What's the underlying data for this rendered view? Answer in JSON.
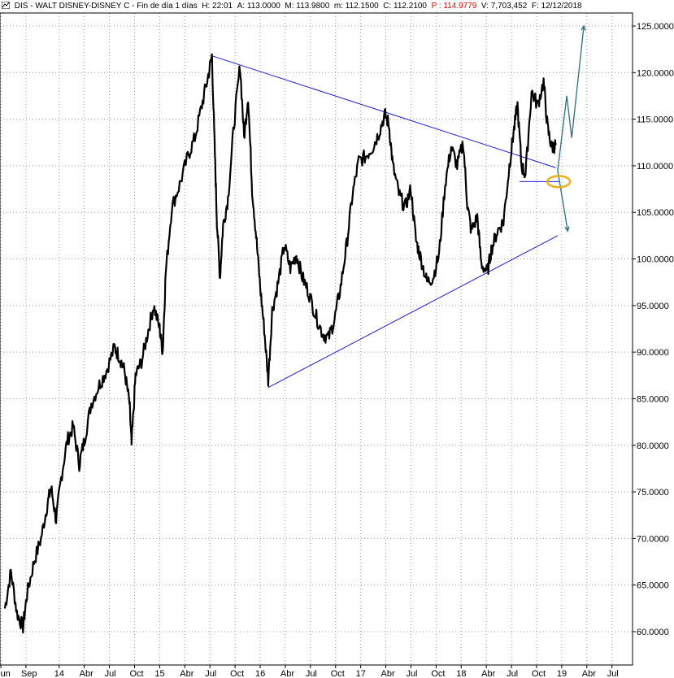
{
  "header": {
    "symbol": "DIS",
    "name": "WALT DISNEY-DISNEY C",
    "period": "Fin de día 1 días",
    "h_label": "H:",
    "h_value": "22:01",
    "a_label": "A:",
    "a_value": "113.0000",
    "m_label": "M:",
    "m_value": "113.9800",
    "mm_label": "m:",
    "mm_value": "112.1500",
    "c_label": "C:",
    "c_value": "112.2100",
    "p_label": "P :",
    "p_value": "114.9779",
    "v_label": "V:",
    "v_value": "7,703,452",
    "f_label": "F:",
    "f_value": "12/12/2018"
  },
  "colors": {
    "price": "#000000",
    "trendline": "#1a1acc",
    "projection": "#2e6d7a",
    "highlight": "#e8b020",
    "grid": "#9a9a9a"
  },
  "chart_data": {
    "type": "line",
    "title": "",
    "xlabel": "",
    "ylabel": "",
    "grid": true,
    "y_axis_position": "right",
    "ylim": [
      59,
      126.5
    ],
    "xlim": [
      2013.46,
      2019.64
    ],
    "yticks": [
      "60.0000",
      "65.0000",
      "70.0000",
      "75.0000",
      "80.0000",
      "85.0000",
      "90.0000",
      "95.0000",
      "100.0000",
      "105.0000",
      "110.0000",
      "115.0000",
      "120.0000",
      "125.0000"
    ],
    "ytick_values": [
      60,
      65,
      70,
      75,
      80,
      85,
      90,
      95,
      100,
      105,
      110,
      115,
      120,
      125
    ],
    "xticks": [
      {
        "label": "Jun",
        "x": 2013.42
      },
      {
        "label": "Sep",
        "x": 2013.67
      },
      {
        "label": "14",
        "x": 2014.0
      },
      {
        "label": "Abr",
        "x": 2014.25
      },
      {
        "label": "Jul",
        "x": 2014.5
      },
      {
        "label": "Oct",
        "x": 2014.75
      },
      {
        "label": "15",
        "x": 2015.0
      },
      {
        "label": "Abr",
        "x": 2015.25
      },
      {
        "label": "Jul",
        "x": 2015.5
      },
      {
        "label": "Oct",
        "x": 2015.75
      },
      {
        "label": "16",
        "x": 2016.0
      },
      {
        "label": "Abr",
        "x": 2016.25
      },
      {
        "label": "Jul",
        "x": 2016.5
      },
      {
        "label": "Oct",
        "x": 2016.75
      },
      {
        "label": "17",
        "x": 2017.0
      },
      {
        "label": "Abr",
        "x": 2017.25
      },
      {
        "label": "Jul",
        "x": 2017.5
      },
      {
        "label": "Oct",
        "x": 2017.75
      },
      {
        "label": "18",
        "x": 2018.0
      },
      {
        "label": "Abr",
        "x": 2018.25
      },
      {
        "label": "Jul",
        "x": 2018.5
      },
      {
        "label": "Oct",
        "x": 2018.75
      },
      {
        "label": "19",
        "x": 2019.0
      },
      {
        "label": "Abr",
        "x": 2019.25
      },
      {
        "label": "Jul",
        "x": 2019.5
      }
    ],
    "series": [
      {
        "points": [
          [
            2013.46,
            62.5
          ],
          [
            2013.52,
            66.5
          ],
          [
            2013.58,
            62.0
          ],
          [
            2013.64,
            60.5
          ],
          [
            2013.68,
            64.0
          ],
          [
            2013.75,
            67.5
          ],
          [
            2013.82,
            70.0
          ],
          [
            2013.88,
            73.5
          ],
          [
            2013.92,
            75.5
          ],
          [
            2013.97,
            72.0
          ],
          [
            2014.02,
            76.5
          ],
          [
            2014.08,
            80.5
          ],
          [
            2014.14,
            82.0
          ],
          [
            2014.2,
            78.0
          ],
          [
            2014.25,
            80.5
          ],
          [
            2014.32,
            84.5
          ],
          [
            2014.4,
            86.5
          ],
          [
            2014.47,
            88.0
          ],
          [
            2014.55,
            90.5
          ],
          [
            2014.6,
            89.5
          ],
          [
            2014.65,
            88.0
          ],
          [
            2014.7,
            84.5
          ],
          [
            2014.72,
            80.0
          ],
          [
            2014.76,
            87.5
          ],
          [
            2014.82,
            89.0
          ],
          [
            2014.88,
            92.0
          ],
          [
            2014.94,
            95.0
          ],
          [
            2015.0,
            92.5
          ],
          [
            2015.03,
            90.0
          ],
          [
            2015.06,
            98.5
          ],
          [
            2015.12,
            105.5
          ],
          [
            2015.2,
            108.0
          ],
          [
            2015.28,
            111.0
          ],
          [
            2015.35,
            113.0
          ],
          [
            2015.42,
            116.5
          ],
          [
            2015.48,
            119.5
          ],
          [
            2015.52,
            121.8
          ],
          [
            2015.55,
            111.0
          ],
          [
            2015.57,
            104.0
          ],
          [
            2015.6,
            98.0
          ],
          [
            2015.63,
            103.5
          ],
          [
            2015.68,
            106.5
          ],
          [
            2015.74,
            114.5
          ],
          [
            2015.8,
            120.8
          ],
          [
            2015.84,
            113.0
          ],
          [
            2015.88,
            117.5
          ],
          [
            2015.92,
            107.5
          ],
          [
            2015.96,
            102.5
          ],
          [
            2016.0,
            97.0
          ],
          [
            2016.04,
            92.5
          ],
          [
            2016.08,
            87.0
          ],
          [
            2016.12,
            94.5
          ],
          [
            2016.18,
            97.5
          ],
          [
            2016.24,
            101.5
          ],
          [
            2016.3,
            99.0
          ],
          [
            2016.36,
            100.5
          ],
          [
            2016.42,
            98.0
          ],
          [
            2016.48,
            96.5
          ],
          [
            2016.55,
            94.0
          ],
          [
            2016.62,
            92.0
          ],
          [
            2016.68,
            91.5
          ],
          [
            2016.74,
            93.5
          ],
          [
            2016.8,
            97.0
          ],
          [
            2016.86,
            101.5
          ],
          [
            2016.92,
            107.0
          ],
          [
            2016.98,
            110.5
          ],
          [
            2017.05,
            111.0
          ],
          [
            2017.12,
            112.0
          ],
          [
            2017.18,
            113.5
          ],
          [
            2017.24,
            115.5
          ],
          [
            2017.28,
            114.5
          ],
          [
            2017.32,
            110.0
          ],
          [
            2017.38,
            107.0
          ],
          [
            2017.44,
            105.5
          ],
          [
            2017.5,
            107.5
          ],
          [
            2017.55,
            102.0
          ],
          [
            2017.6,
            100.0
          ],
          [
            2017.66,
            97.5
          ],
          [
            2017.72,
            98.0
          ],
          [
            2017.78,
            100.5
          ],
          [
            2017.84,
            108.0
          ],
          [
            2017.9,
            112.0
          ],
          [
            2017.96,
            110.0
          ],
          [
            2018.02,
            112.5
          ],
          [
            2018.06,
            106.0
          ],
          [
            2018.1,
            103.0
          ],
          [
            2018.16,
            104.5
          ],
          [
            2018.2,
            99.5
          ],
          [
            2018.26,
            98.5
          ],
          [
            2018.3,
            101.0
          ],
          [
            2018.36,
            103.0
          ],
          [
            2018.42,
            104.0
          ],
          [
            2018.48,
            110.0
          ],
          [
            2018.52,
            113.5
          ],
          [
            2018.56,
            116.5
          ],
          [
            2018.6,
            110.0
          ],
          [
            2018.64,
            109.0
          ],
          [
            2018.7,
            118.0
          ],
          [
            2018.76,
            116.5
          ],
          [
            2018.82,
            119.0
          ],
          [
            2018.86,
            114.0
          ],
          [
            2018.9,
            112.0
          ],
          [
            2018.94,
            112.2
          ]
        ]
      }
    ],
    "trendlines": [
      {
        "from": [
          2015.52,
          121.8
        ],
        "to": [
          2018.94,
          109.8
        ]
      },
      {
        "from": [
          2016.08,
          86.2
        ],
        "to": [
          2018.96,
          102.5
        ]
      },
      {
        "from": [
          2018.58,
          108.3
        ],
        "to": [
          2018.98,
          108.3
        ]
      }
    ],
    "projections": [
      {
        "path": [
          [
            2018.96,
            109.5
          ],
          [
            2019.05,
            117.5
          ],
          [
            2019.1,
            113.0
          ],
          [
            2019.15,
            118.0
          ],
          [
            2019.22,
            125.0
          ]
        ]
      },
      {
        "path": [
          [
            2018.96,
            109.5
          ],
          [
            2019.06,
            103.0
          ]
        ]
      }
    ],
    "highlight": {
      "center": [
        2018.97,
        108.3
      ],
      "rx_data": 0.05,
      "ry_data": 0.6
    }
  }
}
